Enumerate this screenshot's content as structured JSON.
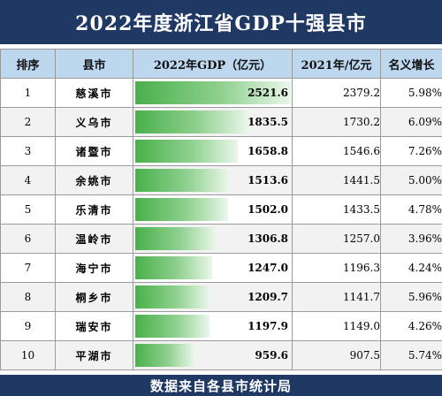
{
  "title": "2022年度浙江省GDP十强县市",
  "footer": "数据来自各县市统计局",
  "headers": {
    "rank": "排序",
    "city": "县市",
    "gdp2022": "2022年GDP（亿元）",
    "gdp2021": "2021年/亿元",
    "growth": "名义增长"
  },
  "chart_data": {
    "type": "table",
    "title": "2022年度浙江省GDP十强县市",
    "columns": [
      "排序",
      "县市",
      "2022年GDP（亿元）",
      "2021年/亿元",
      "名义增长"
    ],
    "bar_max": 2521.6,
    "rows": [
      {
        "rank": "1",
        "city": "慈溪市",
        "gdp2022": 2521.6,
        "gdp2022_text": "2521.6",
        "gdp2021": "2379.2",
        "growth": "5.98%"
      },
      {
        "rank": "2",
        "city": "义乌市",
        "gdp2022": 1835.5,
        "gdp2022_text": "1835.5",
        "gdp2021": "1730.2",
        "growth": "6.09%"
      },
      {
        "rank": "3",
        "city": "诸暨市",
        "gdp2022": 1658.8,
        "gdp2022_text": "1658.8",
        "gdp2021": "1546.6",
        "growth": "7.26%"
      },
      {
        "rank": "4",
        "city": "余姚市",
        "gdp2022": 1513.6,
        "gdp2022_text": "1513.6",
        "gdp2021": "1441.5",
        "growth": "5.00%"
      },
      {
        "rank": "5",
        "city": "乐清市",
        "gdp2022": 1502.0,
        "gdp2022_text": "1502.0",
        "gdp2021": "1433.5",
        "growth": "4.78%"
      },
      {
        "rank": "6",
        "city": "温岭市",
        "gdp2022": 1306.8,
        "gdp2022_text": "1306.8",
        "gdp2021": "1257.0",
        "growth": "3.96%"
      },
      {
        "rank": "7",
        "city": "海宁市",
        "gdp2022": 1247.0,
        "gdp2022_text": "1247.0",
        "gdp2021": "1196.3",
        "growth": "4.24%"
      },
      {
        "rank": "8",
        "city": "桐乡市",
        "gdp2022": 1209.7,
        "gdp2022_text": "1209.7",
        "gdp2021": "1141.7",
        "growth": "5.96%"
      },
      {
        "rank": "9",
        "city": "瑞安市",
        "gdp2022": 1197.9,
        "gdp2022_text": "1197.9",
        "gdp2021": "1149.0",
        "growth": "4.26%"
      },
      {
        "rank": "10",
        "city": "平湖市",
        "gdp2022": 959.6,
        "gdp2022_text": "959.6",
        "gdp2021": "907.5",
        "growth": "5.74%"
      }
    ]
  }
}
